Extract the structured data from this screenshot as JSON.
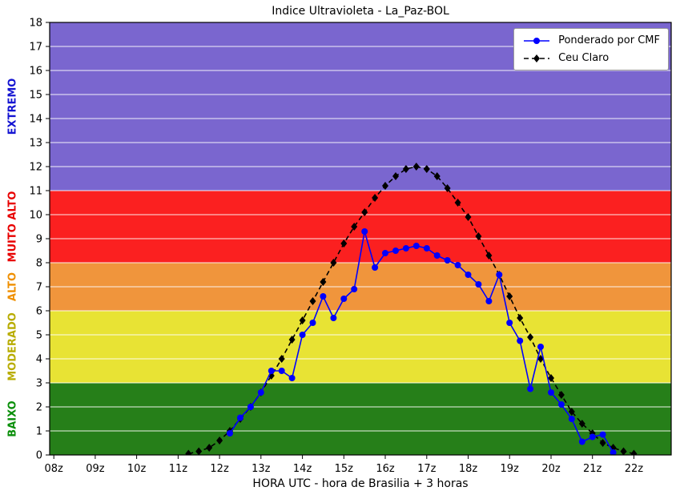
{
  "chart_data": {
    "type": "line",
    "title": "Indice Ultravioleta - La_Paz-BOL",
    "xlabel": "HORA UTC - hora de Brasilia + 3 horas",
    "ylabel": "",
    "xlim": [
      7.9,
      22.9
    ],
    "ylim": [
      0,
      18
    ],
    "grid": "horizontal-white-lines",
    "legend_position": "upper-right",
    "x_ticks": [
      {
        "value": 8,
        "label": "08z"
      },
      {
        "value": 9,
        "label": "09z"
      },
      {
        "value": 10,
        "label": "10z"
      },
      {
        "value": 11,
        "label": "11z"
      },
      {
        "value": 12,
        "label": "12z"
      },
      {
        "value": 13,
        "label": "13z"
      },
      {
        "value": 14,
        "label": "14z"
      },
      {
        "value": 15,
        "label": "15z"
      },
      {
        "value": 16,
        "label": "16z"
      },
      {
        "value": 17,
        "label": "17z"
      },
      {
        "value": 18,
        "label": "18z"
      },
      {
        "value": 19,
        "label": "19z"
      },
      {
        "value": 20,
        "label": "20z"
      },
      {
        "value": 21,
        "label": "21z"
      },
      {
        "value": 22,
        "label": "22z"
      }
    ],
    "y_ticks": [
      0,
      1,
      2,
      3,
      4,
      5,
      6,
      7,
      8,
      9,
      10,
      11,
      12,
      13,
      14,
      15,
      16,
      17,
      18
    ],
    "bands": [
      {
        "label": "BAIXO",
        "from": 0,
        "to": 3,
        "color": "#267f19",
        "label_color": "#0a8f0a"
      },
      {
        "label": "MODERADO",
        "from": 3,
        "to": 6,
        "color": "#e8e334",
        "label_color": "#b8ac00"
      },
      {
        "label": "ALTO",
        "from": 6,
        "to": 8,
        "color": "#f0953c",
        "label_color": "#ef8f00"
      },
      {
        "label": "MUITO ALTO",
        "from": 8,
        "to": 11,
        "color": "#fb2020",
        "label_color": "#e80000"
      },
      {
        "label": "EXTREMO",
        "from": 11,
        "to": 18,
        "color": "#7a66cf",
        "label_color": "#1414d2"
      }
    ],
    "series": [
      {
        "name": "Ponderado por CMF",
        "color": "#0000ff",
        "marker": "circle",
        "line": "solid",
        "x": [
          12.25,
          12.5,
          12.75,
          13.0,
          13.25,
          13.5,
          13.75,
          14.0,
          14.25,
          14.5,
          14.75,
          15.0,
          15.25,
          15.5,
          15.75,
          16.0,
          16.25,
          16.5,
          16.75,
          17.0,
          17.25,
          17.5,
          17.75,
          18.0,
          18.25,
          18.5,
          18.75,
          19.0,
          19.25,
          19.5,
          19.75,
          20.0,
          20.25,
          20.5,
          20.75,
          21.0,
          21.25,
          21.5
        ],
        "values": [
          0.9,
          1.55,
          2.0,
          2.6,
          3.5,
          3.5,
          3.2,
          5.0,
          5.5,
          6.6,
          5.7,
          6.5,
          6.9,
          9.3,
          7.8,
          8.4,
          8.5,
          8.6,
          8.7,
          8.6,
          8.3,
          8.1,
          7.9,
          7.5,
          7.1,
          6.4,
          7.5,
          5.5,
          4.75,
          2.75,
          4.5,
          2.6,
          2.1,
          1.5,
          0.55,
          0.75,
          0.85,
          0.1
        ]
      },
      {
        "name": "Ceu Claro",
        "color": "#000000",
        "marker": "diamond",
        "line": "dashed",
        "x": [
          11.25,
          11.5,
          11.75,
          12.0,
          12.25,
          12.5,
          12.75,
          13.0,
          13.25,
          13.5,
          13.75,
          14.0,
          14.25,
          14.5,
          14.75,
          15.0,
          15.25,
          15.5,
          15.75,
          16.0,
          16.25,
          16.5,
          16.75,
          17.0,
          17.25,
          17.5,
          17.75,
          18.0,
          18.25,
          18.5,
          18.75,
          19.0,
          19.25,
          19.5,
          19.75,
          20.0,
          20.25,
          20.5,
          20.75,
          21.0,
          21.25,
          21.5,
          21.75,
          22.0
        ],
        "values": [
          0.05,
          0.15,
          0.3,
          0.6,
          1.0,
          1.5,
          2.0,
          2.6,
          3.3,
          4.0,
          4.8,
          5.6,
          6.4,
          7.2,
          8.0,
          8.8,
          9.5,
          10.1,
          10.7,
          11.2,
          11.6,
          11.9,
          12.0,
          11.9,
          11.6,
          11.1,
          10.5,
          9.9,
          9.1,
          8.3,
          7.5,
          6.6,
          5.7,
          4.9,
          4.0,
          3.2,
          2.5,
          1.8,
          1.3,
          0.9,
          0.5,
          0.3,
          0.15,
          0.05
        ]
      }
    ]
  }
}
